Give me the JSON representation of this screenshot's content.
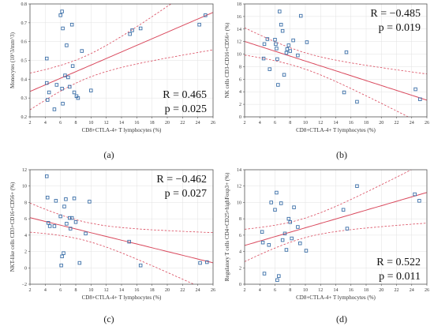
{
  "chart_data": [
    {
      "type": "scatter",
      "caption": "(a)",
      "xlabel": "CD8+CTLA-4+ T lymphocytes (%)",
      "ylabel": "Monocytes (10^3/mm^3)",
      "xlim": [
        2,
        26
      ],
      "ylim": [
        0.2,
        0.8
      ],
      "xticks": [
        2,
        4,
        6,
        8,
        10,
        12,
        14,
        16,
        18,
        20,
        22,
        24,
        26
      ],
      "yticks": [
        0.2,
        0.3,
        0.4,
        0.5,
        0.6,
        0.7,
        0.8
      ],
      "stats": {
        "r": "R = 0.465",
        "p": "p = 0.025"
      },
      "stats_pos": "bottom-right",
      "grid": true,
      "fit": {
        "intercept": 0.3,
        "slope": 0.0175
      },
      "points": [
        {
          "x": 4.2,
          "y": 0.51
        },
        {
          "x": 4.2,
          "y": 0.38
        },
        {
          "x": 4.3,
          "y": 0.29
        },
        {
          "x": 4.5,
          "y": 0.33
        },
        {
          "x": 5.2,
          "y": 0.24
        },
        {
          "x": 5.5,
          "y": 0.37
        },
        {
          "x": 6.0,
          "y": 0.74
        },
        {
          "x": 6.2,
          "y": 0.76
        },
        {
          "x": 6.3,
          "y": 0.67
        },
        {
          "x": 6.2,
          "y": 0.35
        },
        {
          "x": 6.3,
          "y": 0.27
        },
        {
          "x": 6.6,
          "y": 0.42
        },
        {
          "x": 6.8,
          "y": 0.58
        },
        {
          "x": 7.0,
          "y": 0.41
        },
        {
          "x": 7.2,
          "y": 0.36
        },
        {
          "x": 7.5,
          "y": 0.69
        },
        {
          "x": 7.6,
          "y": 0.47
        },
        {
          "x": 7.8,
          "y": 0.33
        },
        {
          "x": 8.1,
          "y": 0.31
        },
        {
          "x": 8.3,
          "y": 0.3
        },
        {
          "x": 8.8,
          "y": 0.55
        },
        {
          "x": 10.0,
          "y": 0.34
        },
        {
          "x": 15.1,
          "y": 0.64
        },
        {
          "x": 15.4,
          "y": 0.66
        },
        {
          "x": 16.5,
          "y": 0.67
        },
        {
          "x": 24.2,
          "y": 0.69
        },
        {
          "x": 25.0,
          "y": 0.74
        }
      ]
    },
    {
      "type": "scatter",
      "caption": "(b)",
      "xlabel": "CD8+CTLA-4+ T lymphocytes (%)",
      "ylabel": "NK cells CD3-CD16+CD56+ (%)",
      "xlim": [
        2,
        26
      ],
      "ylim": [
        0,
        18
      ],
      "xticks": [
        2,
        4,
        6,
        8,
        10,
        12,
        14,
        16,
        18,
        20,
        22,
        24,
        26
      ],
      "yticks": [
        0,
        2,
        4,
        6,
        8,
        10,
        12,
        14,
        16,
        18
      ],
      "stats": {
        "r": "R = -0.485",
        "p": "p = 0.019"
      },
      "stats_pos": "top-right",
      "grid": true,
      "fit": {
        "intercept": 12.8,
        "slope": -0.39
      },
      "points": [
        {
          "x": 4.5,
          "y": 9.3
        },
        {
          "x": 4.6,
          "y": 11.6
        },
        {
          "x": 5.0,
          "y": 12.4
        },
        {
          "x": 5.3,
          "y": 7.6
        },
        {
          "x": 6.0,
          "y": 12.3
        },
        {
          "x": 6.1,
          "y": 11.6
        },
        {
          "x": 6.2,
          "y": 10.9
        },
        {
          "x": 6.3,
          "y": 9.2
        },
        {
          "x": 6.4,
          "y": 5.1
        },
        {
          "x": 6.6,
          "y": 16.8
        },
        {
          "x": 6.8,
          "y": 14.7
        },
        {
          "x": 7.0,
          "y": 13.7
        },
        {
          "x": 7.2,
          "y": 6.7
        },
        {
          "x": 7.5,
          "y": 10.2
        },
        {
          "x": 7.6,
          "y": 10.8
        },
        {
          "x": 7.8,
          "y": 11.4
        },
        {
          "x": 8.0,
          "y": 10.5
        },
        {
          "x": 8.4,
          "y": 12.2
        },
        {
          "x": 9.0,
          "y": 9.8
        },
        {
          "x": 9.4,
          "y": 16.1
        },
        {
          "x": 10.2,
          "y": 11.9
        },
        {
          "x": 15.4,
          "y": 10.3
        },
        {
          "x": 15.1,
          "y": 3.9
        },
        {
          "x": 16.8,
          "y": 2.4
        },
        {
          "x": 24.5,
          "y": 4.4
        },
        {
          "x": 25.1,
          "y": 2.8
        }
      ]
    },
    {
      "type": "scatter",
      "caption": "(c)",
      "xlabel": "CD8+CTLA-4+ T lymphocytes (%)",
      "ylabel": "NKT-like cells CD3+CD16+CD56+ (%)",
      "xlim": [
        2,
        26
      ],
      "ylim": [
        -2,
        12
      ],
      "xticks": [
        2,
        4,
        6,
        8,
        10,
        12,
        14,
        16,
        18,
        20,
        22,
        24,
        26
      ],
      "yticks": [
        -2,
        0,
        2,
        4,
        6,
        8,
        10,
        12
      ],
      "stats": {
        "r": "R = -0.462",
        "p": "p = 0.027"
      },
      "stats_pos": "top-right",
      "grid": true,
      "fit": {
        "intercept": 6.6,
        "slope": -0.23
      },
      "points": [
        {
          "x": 4.2,
          "y": 11.2
        },
        {
          "x": 4.3,
          "y": 8.6
        },
        {
          "x": 4.4,
          "y": 5.5
        },
        {
          "x": 4.6,
          "y": 5.1
        },
        {
          "x": 5.2,
          "y": 5.1
        },
        {
          "x": 5.4,
          "y": 8.2
        },
        {
          "x": 6.0,
          "y": 6.3
        },
        {
          "x": 6.1,
          "y": 0.3
        },
        {
          "x": 6.2,
          "y": 1.4
        },
        {
          "x": 6.4,
          "y": 1.8
        },
        {
          "x": 6.5,
          "y": 7.5
        },
        {
          "x": 6.7,
          "y": 8.4
        },
        {
          "x": 6.8,
          "y": 5.4
        },
        {
          "x": 7.2,
          "y": 6.1
        },
        {
          "x": 7.3,
          "y": 4.8
        },
        {
          "x": 7.5,
          "y": 6.1
        },
        {
          "x": 7.8,
          "y": 8.5
        },
        {
          "x": 8.0,
          "y": 5.6
        },
        {
          "x": 8.5,
          "y": 0.6
        },
        {
          "x": 9.3,
          "y": 4.2
        },
        {
          "x": 9.8,
          "y": 8.1
        },
        {
          "x": 15.0,
          "y": 3.2
        },
        {
          "x": 16.5,
          "y": 0.3
        },
        {
          "x": 24.3,
          "y": 0.6
        },
        {
          "x": 25.2,
          "y": 0.7
        }
      ]
    },
    {
      "type": "scatter",
      "caption": "(d)",
      "xlabel": "CD8+CTLA-4+ T lymphocytes (%)",
      "ylabel": "Regulatory T cells CD4+CD25+highFoxp3+ (%)",
      "xlim": [
        2,
        26
      ],
      "ylim": [
        0,
        14
      ],
      "xticks": [
        2,
        4,
        6,
        8,
        10,
        12,
        14,
        16,
        18,
        20,
        22,
        24,
        26
      ],
      "yticks": [
        0,
        2,
        4,
        6,
        8,
        10,
        12,
        14
      ],
      "stats": {
        "r": "R = 0.522",
        "p": "p = 0.011"
      },
      "stats_pos": "bottom-right",
      "grid": true,
      "fit": {
        "intercept": 4.2,
        "slope": 0.27
      },
      "points": [
        {
          "x": 4.3,
          "y": 6.4
        },
        {
          "x": 4.4,
          "y": 5.1
        },
        {
          "x": 4.6,
          "y": 1.3
        },
        {
          "x": 5.2,
          "y": 4.8
        },
        {
          "x": 5.5,
          "y": 10.0
        },
        {
          "x": 6.0,
          "y": 9.1
        },
        {
          "x": 6.2,
          "y": 11.2
        },
        {
          "x": 6.3,
          "y": 0.5
        },
        {
          "x": 6.5,
          "y": 1.0
        },
        {
          "x": 6.8,
          "y": 9.9
        },
        {
          "x": 7.0,
          "y": 5.4
        },
        {
          "x": 7.3,
          "y": 6.2
        },
        {
          "x": 7.5,
          "y": 4.2
        },
        {
          "x": 7.8,
          "y": 8.0
        },
        {
          "x": 8.0,
          "y": 7.6
        },
        {
          "x": 8.2,
          "y": 5.6
        },
        {
          "x": 8.5,
          "y": 9.4
        },
        {
          "x": 9.0,
          "y": 7.0
        },
        {
          "x": 9.3,
          "y": 5.0
        },
        {
          "x": 10.1,
          "y": 4.1
        },
        {
          "x": 15.0,
          "y": 9.1
        },
        {
          "x": 15.5,
          "y": 6.8
        },
        {
          "x": 16.8,
          "y": 12.0
        },
        {
          "x": 24.4,
          "y": 11.0
        },
        {
          "x": 25.0,
          "y": 10.2
        }
      ]
    }
  ]
}
